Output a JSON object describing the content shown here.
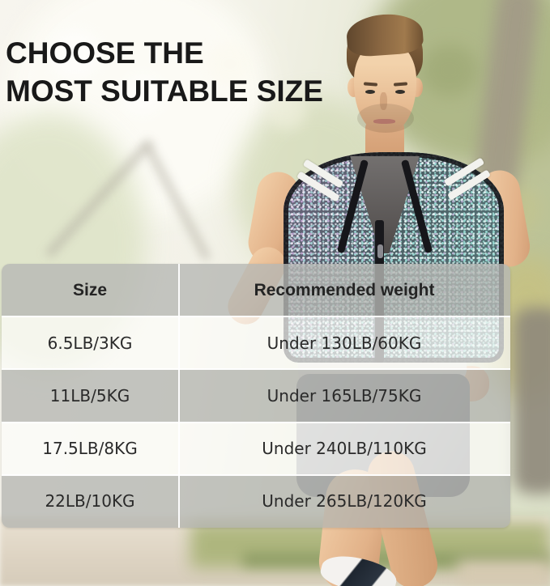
{
  "title": {
    "line1": "CHOOSE THE",
    "line2": "MOST SUITABLE SIZE"
  },
  "size_table": {
    "columns": [
      "Size",
      "Recommended weight"
    ],
    "rows": [
      {
        "size": "6.5LB/3KG",
        "recommended_weight": "Under 130LB/60KG"
      },
      {
        "size": "11LB/5KG",
        "recommended_weight": "Under 165LB/75KG"
      },
      {
        "size": "17.5LB/8KG",
        "recommended_weight": "Under 240LB/110KG"
      },
      {
        "size": "22LB/10KG",
        "recommended_weight": "Under 265LB/120KG"
      }
    ]
  },
  "colors": {
    "title_text": "#191919",
    "table_text": "#2a2a2a",
    "header_row_gray": "#b7b8b4",
    "data_row_gray": "#b2b3af",
    "data_row_white": "#fcfcfa",
    "divider_white": "#ffffff",
    "vest_base": "#39424a",
    "vest_teal_sparkle": "#98dad2",
    "vest_purple_sparkle": "#c8a4d6",
    "reflective_stripe": "#f2f2ee"
  }
}
